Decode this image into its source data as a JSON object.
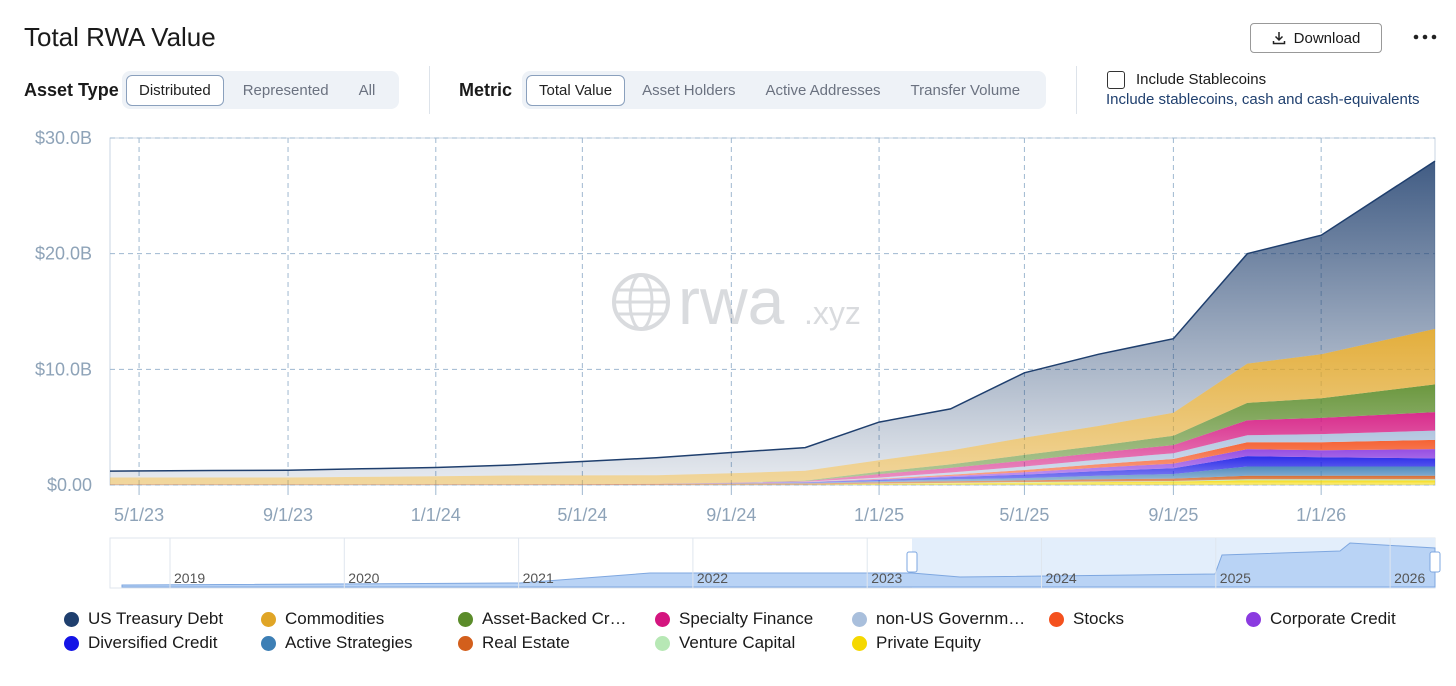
{
  "header": {
    "title": "Total RWA Value",
    "download": "Download"
  },
  "controls": {
    "asset_type": {
      "label": "Asset Type",
      "options": [
        "Distributed",
        "Represented",
        "All"
      ]
    },
    "metric": {
      "label": "Metric",
      "options": [
        "Total Value",
        "Asset Holders",
        "Active Addresses",
        "Transfer Volume"
      ]
    },
    "stablecoins": {
      "label": "Include Stablecoins",
      "description": "Include stablecoins, cash and cash-equivalents"
    }
  },
  "watermark": {
    "main": "rwa",
    "suffix": ".xyz"
  },
  "navigator": {
    "labels": [
      "2019",
      "2020",
      "2021",
      "2022",
      "2023",
      "2024",
      "2025",
      "2026"
    ]
  },
  "chart_data": {
    "type": "stacked-area",
    "x": [
      "4/7/23",
      "7/1/23",
      "9/1/23",
      "11/1/23",
      "1/1/24",
      "3/1/24",
      "5/1/24",
      "7/1/24",
      "9/1/24",
      "11/1/24",
      "1/1/25",
      "3/1/25",
      "5/1/25",
      "7/1/25",
      "9/1/25",
      "11/1/25",
      "1/1/26",
      "4/5/26"
    ],
    "xlim": [
      "4/7/23",
      "4/5/26"
    ],
    "xticks": [
      "5/1/23",
      "9/1/23",
      "1/1/24",
      "5/1/24",
      "9/1/24",
      "1/1/25",
      "5/1/25",
      "9/1/25",
      "1/1/26"
    ],
    "ylim": [
      0,
      30
    ],
    "yticks": [
      {
        "value": 0,
        "label": "$0.00"
      },
      {
        "value": 10,
        "label": "$10.0B"
      },
      {
        "value": 20,
        "label": "$20.0B"
      },
      {
        "value": 30,
        "label": "$30.0B"
      }
    ],
    "grid": true,
    "series": [
      {
        "name": "US Treasury Debt",
        "color": "#1f3f6e",
        "values": [
          0.55,
          0.6,
          0.62,
          0.7,
          0.75,
          0.9,
          1.2,
          1.5,
          1.8,
          2.0,
          3.3,
          3.6,
          5.6,
          6.2,
          6.4,
          9.5,
          10.3,
          14.5
        ]
      },
      {
        "name": "Commodities",
        "color": "#e0a526",
        "values": [
          0.6,
          0.6,
          0.6,
          0.65,
          0.7,
          0.75,
          0.75,
          0.75,
          0.8,
          0.85,
          1.0,
          1.2,
          1.5,
          1.7,
          2.0,
          3.4,
          3.8,
          4.8
        ]
      },
      {
        "name": "Asset-Backed Cr…",
        "color": "#5b8c2a",
        "values": [
          0,
          0,
          0,
          0,
          0,
          0,
          0,
          0,
          0.02,
          0.05,
          0.2,
          0.3,
          0.5,
          0.6,
          0.8,
          1.5,
          1.7,
          2.4
        ]
      },
      {
        "name": "Specialty Finance",
        "color": "#d4157f",
        "values": [
          0,
          0,
          0,
          0,
          0,
          0,
          0,
          0,
          0.02,
          0.05,
          0.3,
          0.4,
          0.5,
          0.6,
          0.7,
          1.3,
          1.4,
          1.6
        ]
      },
      {
        "name": "non-US Governm…",
        "color": "#a9bfdc",
        "values": [
          0,
          0,
          0,
          0,
          0,
          0,
          0,
          0,
          0,
          0.02,
          0.1,
          0.2,
          0.3,
          0.4,
          0.5,
          0.6,
          0.7,
          0.8
        ]
      },
      {
        "name": "Stocks",
        "color": "#f4511e",
        "values": [
          0,
          0,
          0,
          0,
          0,
          0,
          0,
          0,
          0,
          0.01,
          0.05,
          0.1,
          0.2,
          0.3,
          0.4,
          0.6,
          0.7,
          0.8
        ]
      },
      {
        "name": "Corporate Credit",
        "color": "#8b3be0",
        "values": [
          0,
          0,
          0,
          0,
          0,
          0,
          0,
          0,
          0.01,
          0.02,
          0.05,
          0.1,
          0.2,
          0.3,
          0.4,
          0.6,
          0.6,
          0.8
        ]
      },
      {
        "name": "Diversified Credit",
        "color": "#1414e6",
        "values": [
          0,
          0,
          0,
          0,
          0,
          0,
          0,
          0,
          0.02,
          0.05,
          0.1,
          0.2,
          0.3,
          0.4,
          0.5,
          0.9,
          0.8,
          0.7
        ]
      },
      {
        "name": "Active Strategies",
        "color": "#3d7fb5",
        "values": [
          0,
          0,
          0,
          0,
          0,
          0,
          0,
          0,
          0.02,
          0.05,
          0.1,
          0.15,
          0.2,
          0.3,
          0.4,
          0.8,
          0.8,
          0.8
        ]
      },
      {
        "name": "Real Estate",
        "color": "#d35f1c",
        "values": [
          0.05,
          0.05,
          0.05,
          0.05,
          0.06,
          0.07,
          0.08,
          0.1,
          0.1,
          0.1,
          0.12,
          0.15,
          0.15,
          0.2,
          0.2,
          0.3,
          0.3,
          0.3
        ]
      },
      {
        "name": "Venture Capital",
        "color": "#b7e8b5",
        "values": [
          0,
          0,
          0,
          0,
          0,
          0,
          0,
          0,
          0,
          0,
          0.02,
          0.03,
          0.05,
          0.05,
          0.05,
          0.1,
          0.1,
          0.1
        ]
      },
      {
        "name": "Private Equity",
        "color": "#f5d800",
        "values": [
          0,
          0,
          0,
          0,
          0,
          0,
          0,
          0,
          0.02,
          0.03,
          0.1,
          0.15,
          0.2,
          0.25,
          0.3,
          0.4,
          0.4,
          0.4
        ]
      }
    ]
  }
}
